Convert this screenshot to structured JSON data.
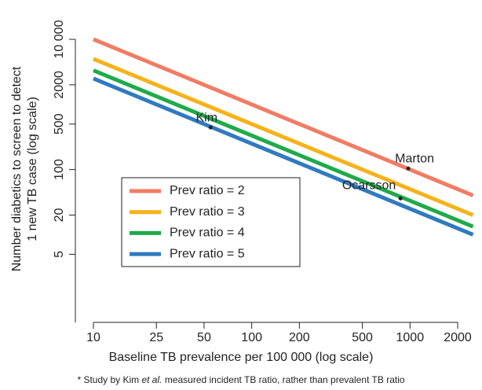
{
  "chart_data": {
    "type": "line",
    "xlabel": "Baseline TB prevalence per 100 000 (log scale)",
    "ylabel": [
      "Number diabetics to screen to detect",
      "1 new TB case (log scale)"
    ],
    "log_x": true,
    "log_y": true,
    "xlim": [
      10,
      2000
    ],
    "ylim": [
      0.45,
      10000
    ],
    "xticks": [
      10,
      25,
      50,
      100,
      200,
      500,
      1000,
      2000
    ],
    "yticks": [
      5,
      20,
      100,
      500,
      2000,
      {
        "value": 10000,
        "label": "10 000"
      }
    ],
    "x": [
      10,
      2500
    ],
    "series": [
      {
        "name": "Prev ratio = 2",
        "color": "#f07c64",
        "values": [
          10000,
          40
        ]
      },
      {
        "name": "Prev ratio = 3",
        "color": "#f6b21a",
        "values": [
          5000,
          20
        ]
      },
      {
        "name": "Prev ratio = 4",
        "color": "#1faa4b",
        "values": [
          3333,
          13.3
        ]
      },
      {
        "name": "Prev ratio = 5",
        "color": "#2f7ac0",
        "values": [
          2500,
          10
        ]
      }
    ],
    "points": [
      {
        "label": "Kim",
        "x": 55,
        "y": 443
      },
      {
        "label": "Marton",
        "x": 975,
        "y": 104
      },
      {
        "label": "Ocarsson",
        "x": 870,
        "y": 36
      }
    ],
    "footnote": [
      "* Study by Kim ",
      "et al.",
      " measured incident TB ratio, rather than prevalent TB ratio"
    ]
  }
}
